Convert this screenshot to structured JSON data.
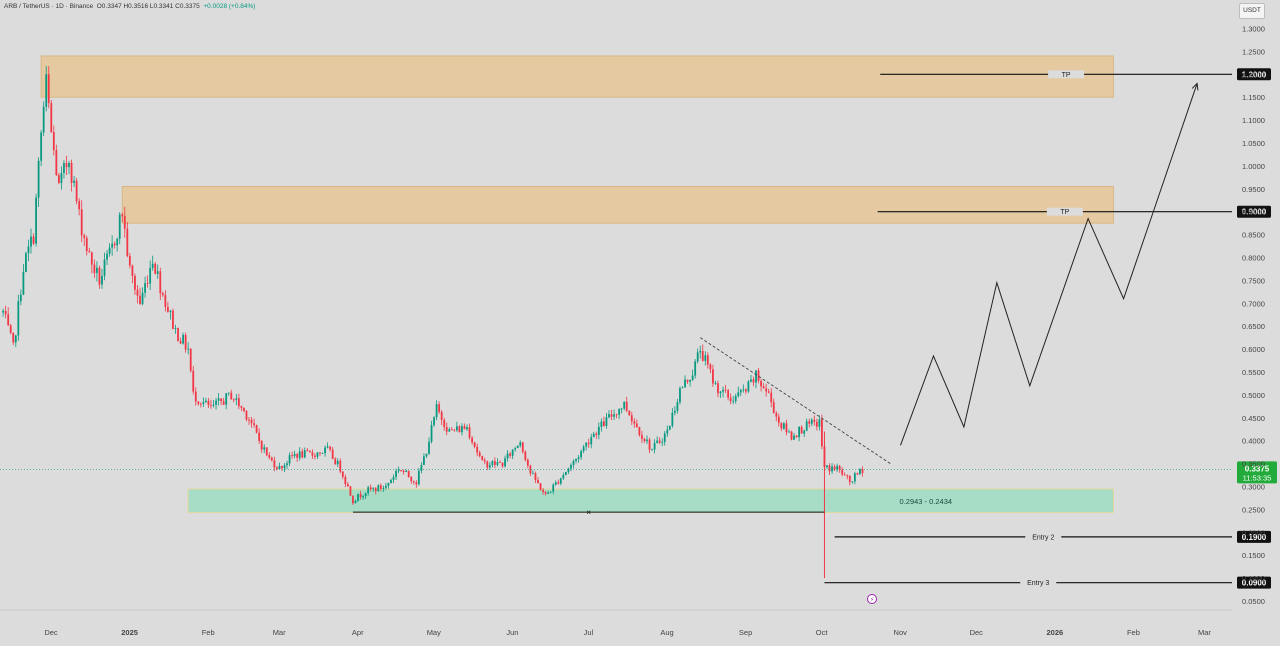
{
  "header": {
    "symbol": "ARB / TetherUS · 1D · Binance",
    "ohlc": "O0.3347  H0.3516  L0.3341  C0.3375",
    "change": "+0.0028 (+0.84%)"
  },
  "currency_button": "USDT",
  "colors": {
    "background": "#dcdcdc",
    "up": "#089981",
    "down": "#f23645",
    "supply_zone": "#e5c9a0",
    "demand_zone": "#a7dcc7",
    "last_price_bg": "#22ab3a"
  },
  "chart_data": {
    "type": "candlestick",
    "pair": "ARB/USDT",
    "interval": "1D",
    "x_tick_labels": [
      "Dec",
      "2025",
      "Feb",
      "Mar",
      "Apr",
      "May",
      "Jun",
      "Jul",
      "Aug",
      "Sep",
      "Oct",
      "Nov",
      "Dec",
      "2026",
      "Feb",
      "Mar"
    ],
    "x_range": [
      "2024-11-20",
      "2026-03-31"
    ],
    "y_range": [
      0.04,
      1.35
    ],
    "y_ticks": [
      "1.3000",
      "1.2500",
      "1.2000",
      "1.1500",
      "1.1000",
      "1.0500",
      "1.0000",
      "0.9500",
      "0.9000",
      "0.8500",
      "0.8000",
      "0.7500",
      "0.7000",
      "0.6500",
      "0.6000",
      "0.5500",
      "0.5000",
      "0.4500",
      "0.4000",
      "0.3500",
      "0.3000",
      "0.2500",
      "0.2000",
      "0.1500",
      "0.1000",
      "0.0500"
    ],
    "price_path": [
      [
        "2024-11-20",
        0.68
      ],
      [
        "2024-11-24",
        0.6
      ],
      [
        "2024-11-28",
        0.78
      ],
      [
        "2024-12-02",
        0.85
      ],
      [
        "2024-12-05",
        1.07
      ],
      [
        "2024-12-07",
        1.18
      ],
      [
        "2024-12-09",
        1.07
      ],
      [
        "2024-12-12",
        0.95
      ],
      [
        "2024-12-16",
        1.02
      ],
      [
        "2024-12-20",
        0.89
      ],
      [
        "2024-12-24",
        0.8
      ],
      [
        "2024-12-28",
        0.75
      ],
      [
        "2025-01-02",
        0.82
      ],
      [
        "2025-01-06",
        0.9
      ],
      [
        "2025-01-09",
        0.77
      ],
      [
        "2025-01-13",
        0.7
      ],
      [
        "2025-01-18",
        0.8
      ],
      [
        "2025-01-22",
        0.72
      ],
      [
        "2025-01-27",
        0.64
      ],
      [
        "2025-02-01",
        0.6
      ],
      [
        "2025-02-03",
        0.5
      ],
      [
        "2025-02-10",
        0.47
      ],
      [
        "2025-02-18",
        0.5
      ],
      [
        "2025-02-25",
        0.45
      ],
      [
        "2025-03-01",
        0.4
      ],
      [
        "2025-03-05",
        0.36
      ],
      [
        "2025-03-09",
        0.34
      ],
      [
        "2025-03-15",
        0.37
      ],
      [
        "2025-03-22",
        0.37
      ],
      [
        "2025-03-28",
        0.38
      ],
      [
        "2025-04-02",
        0.34
      ],
      [
        "2025-04-07",
        0.27
      ],
      [
        "2025-04-12",
        0.29
      ],
      [
        "2025-04-20",
        0.3
      ],
      [
        "2025-04-25",
        0.34
      ],
      [
        "2025-05-02",
        0.31
      ],
      [
        "2025-05-06",
        0.38
      ],
      [
        "2025-05-10",
        0.47
      ],
      [
        "2025-05-15",
        0.42
      ],
      [
        "2025-05-22",
        0.43
      ],
      [
        "2025-05-28",
        0.35
      ],
      [
        "2025-06-05",
        0.35
      ],
      [
        "2025-06-12",
        0.4
      ],
      [
        "2025-06-16",
        0.33
      ],
      [
        "2025-06-22",
        0.28
      ],
      [
        "2025-06-28",
        0.32
      ],
      [
        "2025-07-04",
        0.36
      ],
      [
        "2025-07-10",
        0.41
      ],
      [
        "2025-07-17",
        0.45
      ],
      [
        "2025-07-23",
        0.48
      ],
      [
        "2025-07-28",
        0.43
      ],
      [
        "2025-08-03",
        0.38
      ],
      [
        "2025-08-09",
        0.42
      ],
      [
        "2025-08-14",
        0.51
      ],
      [
        "2025-08-19",
        0.55
      ],
      [
        "2025-08-22",
        0.6
      ],
      [
        "2025-08-28",
        0.52
      ],
      [
        "2025-09-03",
        0.49
      ],
      [
        "2025-09-09",
        0.51
      ],
      [
        "2025-09-13",
        0.54
      ],
      [
        "2025-09-18",
        0.5
      ],
      [
        "2025-09-22",
        0.44
      ],
      [
        "2025-09-27",
        0.41
      ],
      [
        "2025-10-02",
        0.43
      ],
      [
        "2025-10-08",
        0.44
      ],
      [
        "2025-10-10",
        0.34
      ],
      [
        "2025-10-12",
        0.34
      ],
      [
        "2025-10-15",
        0.34
      ],
      [
        "2025-10-20",
        0.31
      ],
      [
        "2025-10-25",
        0.3375
      ]
    ],
    "wick_low": {
      "date": "2025-10-10",
      "value": 0.1
    },
    "last_price": {
      "value": "0.3375",
      "countdown": "11:53:35"
    },
    "zones": [
      {
        "kind": "supply",
        "from": "2024-12-05",
        "to": "2026-02-01",
        "low": 1.15,
        "high": 1.24
      },
      {
        "kind": "supply",
        "from": "2025-01-06",
        "to": "2026-02-01",
        "low": 0.875,
        "high": 0.955
      },
      {
        "kind": "demand",
        "from": "2025-02-01",
        "to": "2026-02-01",
        "low": 0.2434,
        "high": 0.2943,
        "label": "0.2943 - 0.2434"
      }
    ],
    "levels": [
      {
        "label": "TP",
        "value": 1.2,
        "axis_label": "1.2000",
        "from": "2025-11-01"
      },
      {
        "label": "TP",
        "value": 0.9,
        "axis_label": "0.9000",
        "from": "2025-10-31"
      },
      {
        "label": "Entry 2",
        "value": 0.19,
        "axis_label": "0.1900",
        "from": "2025-10-14"
      },
      {
        "label": "Entry 3",
        "value": 0.09,
        "axis_label": "0.0900",
        "from": "2025-10-10"
      }
    ],
    "support_line": {
      "from": [
        "2025-04-07",
        0.244
      ],
      "to": [
        "2025-10-10",
        0.244
      ],
      "marker": "×"
    },
    "downtrend_line": {
      "from": [
        "2025-08-22",
        0.625
      ],
      "to": [
        "2025-11-05",
        0.35
      ]
    },
    "projection_path": [
      [
        "2025-11-09",
        0.39
      ],
      [
        "2025-11-22",
        0.585
      ],
      [
        "2025-12-04",
        0.43
      ],
      [
        "2025-12-17",
        0.745
      ],
      [
        "2025-12-30",
        0.52
      ],
      [
        "2026-01-22",
        0.885
      ],
      [
        "2026-02-05",
        0.71
      ],
      [
        "2026-03-06",
        1.18
      ]
    ]
  }
}
